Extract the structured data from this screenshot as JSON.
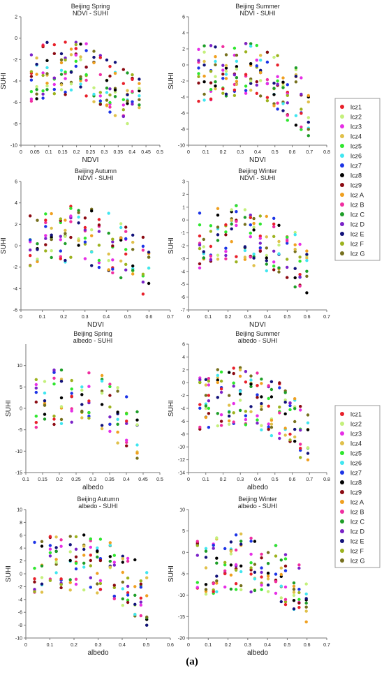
{
  "figure_label": "(a)",
  "legend_entries": [
    "lcz1",
    "lcz2",
    "lcz3",
    "lcz4",
    "lcz5",
    "lcz6",
    "lcz7",
    "lcz8",
    "lcz9",
    "lcz A",
    "lcz B",
    "lcz C",
    "lcz D",
    "lcz E",
    "lcz F",
    "lcz G"
  ],
  "colors": {
    "lcz1": "#e8202a",
    "lcz2": "#c4f07c",
    "lcz3": "#e62ee6",
    "lcz4": "#e0c04a",
    "lcz5": "#2ee62e",
    "lcz6": "#40e6f0",
    "lcz7": "#1c34e6",
    "lcz8": "#000000",
    "lcz9": "#8b0a12",
    "lcz A": "#f0a020",
    "lcz B": "#f02ea0",
    "lcz C": "#1e9e28",
    "lcz D": "#7a22c8",
    "lcz E": "#12127a",
    "lcz F": "#9cb21e",
    "lcz G": "#76701e"
  },
  "chart_data": [
    {
      "type": "scatter",
      "title": "Beijing Spring",
      "subtitle": "NDVI - SUHI",
      "xlabel": "NDVI",
      "ylabel": "SUHI",
      "xlim": [
        0,
        0.5
      ],
      "ylim": [
        -10,
        2
      ],
      "xticks": [
        0,
        0.05,
        0.1,
        0.15,
        0.2,
        0.25,
        0.3,
        0.35,
        0.4,
        0.45,
        0.5
      ],
      "yticks": [
        -10,
        -8,
        -6,
        -4,
        -2,
        0,
        2
      ],
      "sample_points": 20
    },
    {
      "type": "scatter",
      "title": "Beijing Summer",
      "subtitle": "NDVI - SUHI",
      "xlabel": "NDVI",
      "ylabel": "SUHI",
      "xlim": [
        0,
        0.8
      ],
      "ylim": [
        -10,
        6
      ],
      "xticks": [
        0,
        0.1,
        0.2,
        0.3,
        0.4,
        0.5,
        0.6,
        0.7,
        0.8
      ],
      "yticks": [
        -10,
        -8,
        -6,
        -4,
        -2,
        0,
        2,
        4,
        6
      ],
      "sample_points": 20
    },
    {
      "type": "scatter",
      "title": "Beijing Autumn",
      "subtitle": "NDVI - SUHI",
      "xlabel": "NDVI",
      "ylabel": "SUHI",
      "xlim": [
        0,
        0.7
      ],
      "ylim": [
        -6,
        6
      ],
      "xticks": [
        0,
        0.1,
        0.2,
        0.3,
        0.4,
        0.5,
        0.6,
        0.7
      ],
      "yticks": [
        -6,
        -4,
        -2,
        0,
        2,
        4,
        6
      ],
      "sample_points": 18
    },
    {
      "type": "scatter",
      "title": "Beijing Winter",
      "subtitle": "NDVI - SUHI",
      "xlabel": "NDVI",
      "ylabel": "SUHI",
      "xlim": [
        0,
        0.7
      ],
      "ylim": [
        -7,
        3
      ],
      "xticks": [
        0,
        0.1,
        0.2,
        0.3,
        0.4,
        0.5,
        0.6,
        0.7
      ],
      "yticks": [
        -7,
        -6,
        -5,
        -4,
        -3,
        -2,
        -1,
        0,
        1,
        2,
        3
      ],
      "sample_points": 18
    },
    {
      "type": "scatter",
      "title": "Beijing Spring",
      "subtitle": "albedo - SUHI",
      "xlabel": "albedo",
      "ylabel": "SUHI",
      "xlim": [
        0.1,
        0.5
      ],
      "ylim": [
        -15,
        15
      ],
      "xticks": [
        0.1,
        0.15,
        0.2,
        0.25,
        0.3,
        0.35,
        0.4,
        0.45,
        0.5
      ],
      "yticks": [
        -15,
        -10,
        -5,
        0,
        5,
        10
      ],
      "sample_points": 12
    },
    {
      "type": "scatter",
      "title": "Beijing Summer",
      "subtitle": "albedo - SUHI",
      "xlabel": "albedo",
      "ylabel": "SUHI",
      "xlim": [
        0,
        0.8
      ],
      "ylim": [
        -14,
        6
      ],
      "xticks": [
        0,
        0.1,
        0.2,
        0.3,
        0.4,
        0.5,
        0.6,
        0.7,
        0.8
      ],
      "yticks": [
        -14,
        -12,
        -10,
        -8,
        -6,
        -4,
        -2,
        0,
        2,
        4,
        6
      ],
      "sample_points": 20
    },
    {
      "type": "scatter",
      "title": "Beijing Autumn",
      "subtitle": "albedo - SUHI",
      "xlabel": "albedo",
      "ylabel": "SUHI",
      "xlim": [
        0,
        0.6
      ],
      "ylim": [
        -10,
        10
      ],
      "xticks": [
        0,
        0.1,
        0.2,
        0.3,
        0.4,
        0.5,
        0.6
      ],
      "yticks": [
        -10,
        -8,
        -6,
        -4,
        -2,
        0,
        2,
        4,
        6,
        8,
        10
      ],
      "sample_points": 18
    },
    {
      "type": "scatter",
      "title": "Beijing Winter",
      "subtitle": "albedo - SUHI",
      "xlabel": "albedo",
      "ylabel": "SUHI",
      "xlim": [
        0,
        0.7
      ],
      "ylim": [
        -20,
        10
      ],
      "xticks": [
        0,
        0.1,
        0.2,
        0.3,
        0.4,
        0.5,
        0.6,
        0.7
      ],
      "yticks": [
        -20,
        -15,
        -10,
        -5,
        0,
        5,
        10
      ],
      "sample_points": 18
    }
  ]
}
